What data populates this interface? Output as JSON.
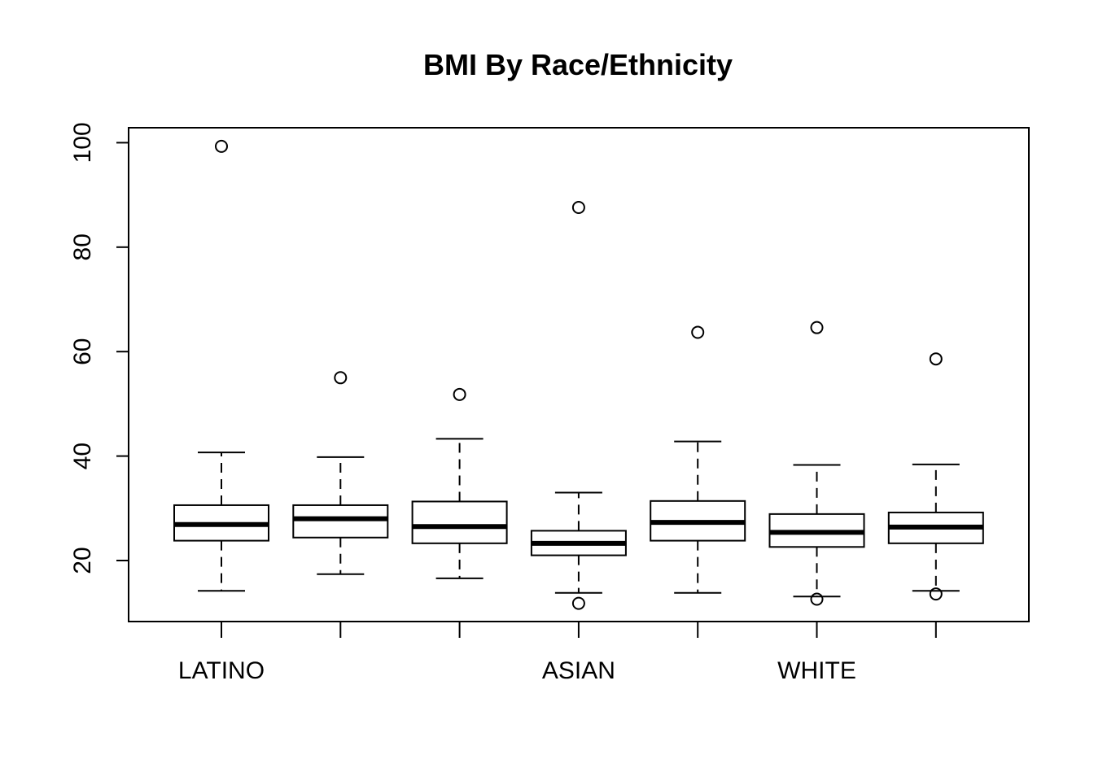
{
  "chart_data": {
    "type": "boxplot",
    "title": "BMI By Race/Ethnicity",
    "xlabel": "",
    "ylabel": "",
    "ylim": [
      8,
      102
    ],
    "yticks": [
      20,
      40,
      60,
      80,
      100
    ],
    "categories": [
      "LATINO",
      "",
      "",
      "ASIAN",
      "",
      "WHITE",
      ""
    ],
    "boxes": [
      {
        "label": "LATINO",
        "whisker_low": 14.2,
        "q1": 23.8,
        "median": 26.9,
        "q3": 30.6,
        "whisker_high": 40.7,
        "outliers": [
          99.3
        ]
      },
      {
        "label": "",
        "whisker_low": 17.4,
        "q1": 24.4,
        "median": 28.0,
        "q3": 30.6,
        "whisker_high": 39.8,
        "outliers": [
          55.0
        ]
      },
      {
        "label": "",
        "whisker_low": 16.6,
        "q1": 23.3,
        "median": 26.5,
        "q3": 31.3,
        "whisker_high": 43.3,
        "outliers": [
          51.8
        ]
      },
      {
        "label": "ASIAN",
        "whisker_low": 13.8,
        "q1": 21.0,
        "median": 23.3,
        "q3": 25.7,
        "whisker_high": 33.0,
        "outliers": [
          87.6,
          11.8
        ]
      },
      {
        "label": "",
        "whisker_low": 13.8,
        "q1": 23.8,
        "median": 27.3,
        "q3": 31.4,
        "whisker_high": 42.8,
        "outliers": [
          63.7
        ]
      },
      {
        "label": "WHITE",
        "whisker_low": 13.1,
        "q1": 22.6,
        "median": 25.4,
        "q3": 28.9,
        "whisker_high": 38.3,
        "outliers": [
          64.6,
          12.6
        ]
      },
      {
        "label": "",
        "whisker_low": 14.2,
        "q1": 23.3,
        "median": 26.4,
        "q3": 29.2,
        "whisker_high": 38.4,
        "outliers": [
          58.6,
          13.6
        ]
      }
    ],
    "grid": false,
    "legend": "none"
  }
}
